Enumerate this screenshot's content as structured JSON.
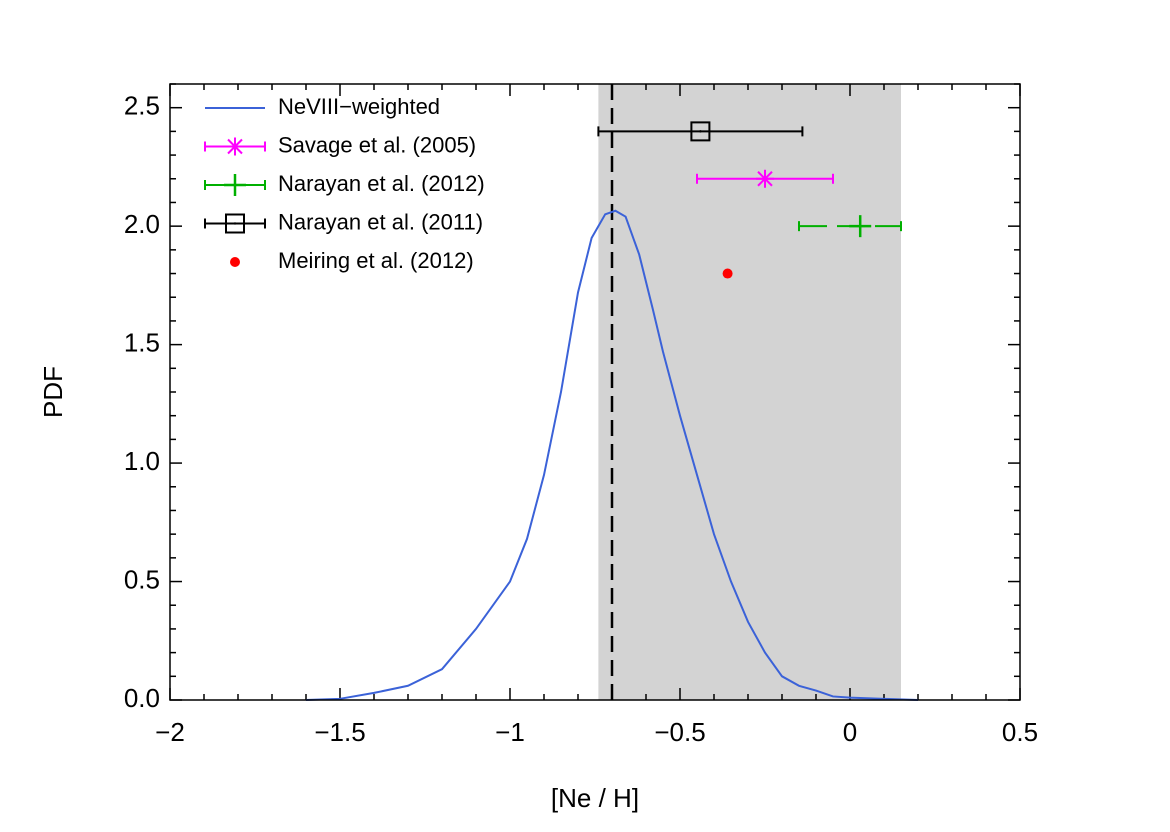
{
  "chart_data": {
    "type": "line",
    "xlabel": "[Ne / H]",
    "ylabel": "PDF",
    "xlim": [
      -2,
      0.5
    ],
    "ylim": [
      0,
      2.6
    ],
    "xticks": [
      {
        "value": -2,
        "label": "−2"
      },
      {
        "value": -1.5,
        "label": "−1.5"
      },
      {
        "value": -1,
        "label": "−1"
      },
      {
        "value": -0.5,
        "label": "−0.5"
      },
      0,
      0.5
    ],
    "yticks": [
      {
        "value": 0,
        "label": "0.0"
      },
      0.5,
      {
        "value": 1,
        "label": "1.0"
      },
      1.5,
      {
        "value": 2,
        "label": "2.0"
      },
      2.5
    ],
    "shaded_region": {
      "xlim": [
        -0.74,
        0.15
      ],
      "color": "#d3d3d3"
    },
    "vline": {
      "x": -0.7,
      "color": "#000000"
    },
    "legend": "upper left",
    "series": [
      {
        "name": "NeVIII−weighted",
        "color": "#3b62d8",
        "kind": "curve",
        "x": [
          -1.6,
          -1.5,
          -1.4,
          -1.3,
          -1.2,
          -1.1,
          -1.0,
          -0.95,
          -0.9,
          -0.85,
          -0.8,
          -0.76,
          -0.72,
          -0.69,
          -0.66,
          -0.62,
          -0.58,
          -0.55,
          -0.5,
          -0.45,
          -0.4,
          -0.35,
          -0.3,
          -0.25,
          -0.2,
          -0.15,
          -0.1,
          -0.05,
          0,
          0.1,
          0.2
        ],
        "values": [
          0,
          0.005,
          0.03,
          0.06,
          0.13,
          0.3,
          0.5,
          0.68,
          0.95,
          1.3,
          1.72,
          1.95,
          2.05,
          2.065,
          2.04,
          1.88,
          1.65,
          1.47,
          1.2,
          0.95,
          0.7,
          0.5,
          0.33,
          0.2,
          0.1,
          0.06,
          0.04,
          0.015,
          0.01,
          0.005,
          0
        ]
      },
      {
        "name": "Savage et al. (2005)",
        "color": "#ff00ff",
        "kind": "star",
        "x": [
          -0.25
        ],
        "values": [
          2.2
        ],
        "xerr": [
          [
            0.2,
            0.2
          ]
        ]
      },
      {
        "name": "Narayan et al. (2012)",
        "color": "#00b000",
        "kind": "plus",
        "x": [
          0.03
        ],
        "values": [
          2.0
        ],
        "xerr": [
          [
            0.18,
            0.12
          ]
        ]
      },
      {
        "name": "Narayan et al. (2011)",
        "color": "#000000",
        "kind": "square",
        "x": [
          -0.44
        ],
        "values": [
          2.4
        ],
        "xerr": [
          [
            0.3,
            0.3
          ]
        ]
      },
      {
        "name": "Meiring et al. (2012)",
        "color": "#ff0000",
        "kind": "dot",
        "x": [
          -0.36
        ],
        "values": [
          1.8
        ]
      }
    ]
  }
}
